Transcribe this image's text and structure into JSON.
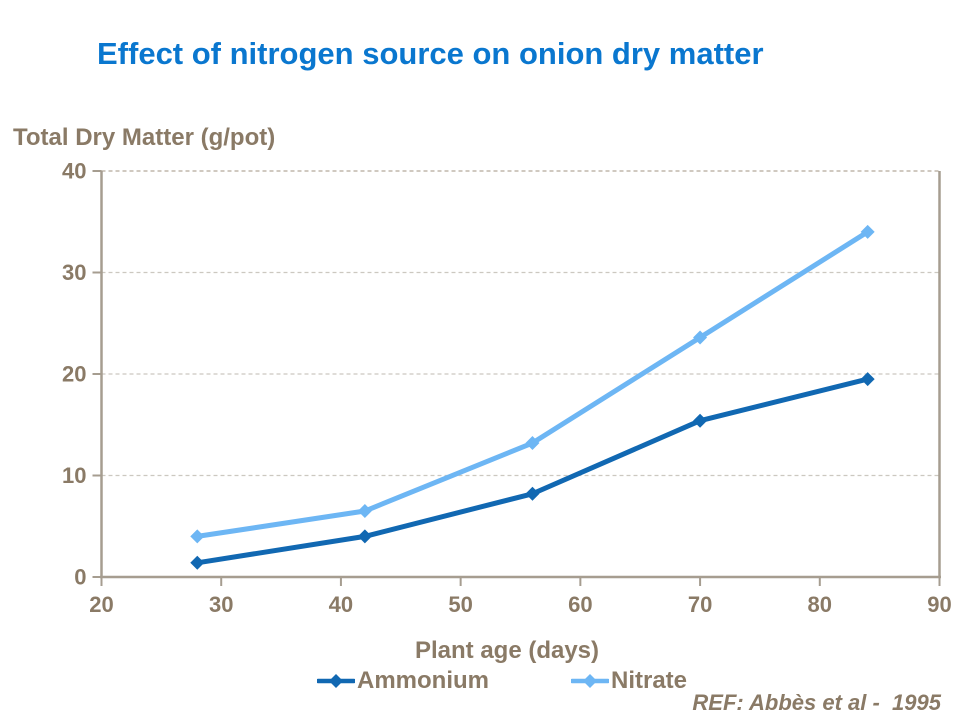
{
  "slide": {
    "title": "Effect of nitrogen source on onion dry matter",
    "ref_note": "REF: Abbès et al -  1995"
  },
  "colors": {
    "background": "#ffffff",
    "title_blue": "#0a77cf",
    "text_taupe": "#8a7a66",
    "axis_line": "#a69d90",
    "gridline": "#ccc8c0",
    "gridline_top": "#b3a99b",
    "ammonium_blue": "#1168b2",
    "nitrate_blue": "#6db6f4"
  },
  "chart_data": {
    "type": "line",
    "title": "Effect of nitrogen source on onion dry matter",
    "xlabel": "Plant age (days)",
    "ylabel": "Total Dry Matter (g/pot)",
    "x": [
      28,
      42,
      56,
      70,
      84
    ],
    "series": [
      {
        "name": "Ammonium",
        "color": "#1168b2",
        "marker": "diamond",
        "values": [
          1.4,
          4.0,
          8.2,
          15.4,
          19.5
        ]
      },
      {
        "name": "Nitrate",
        "color": "#6db6f4",
        "marker": "diamond",
        "values": [
          4.0,
          6.5,
          13.2,
          23.6,
          34.0
        ]
      }
    ],
    "xlim": [
      20,
      90
    ],
    "ylim": [
      0,
      40
    ],
    "x_ticks": [
      20,
      30,
      40,
      50,
      60,
      70,
      80,
      90
    ],
    "y_ticks": [
      0,
      10,
      20,
      30,
      40
    ],
    "grid": "horizontal-dashed",
    "legend_position": "bottom",
    "annotation": "REF: Abbès et al -  1995"
  }
}
